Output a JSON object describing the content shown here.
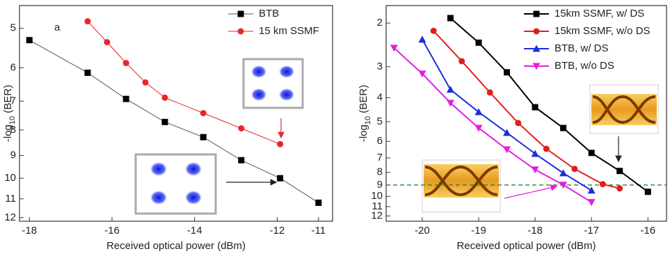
{
  "chart_data": [
    {
      "type": "line",
      "annotation": "a",
      "xlabel": "Received optical power (dBm)",
      "ylabel": {
        "main": "-log",
        "sub": "10",
        "tail": " (BER)"
      },
      "xlim": [
        -18.24,
        -10.66
      ],
      "xticks": [
        -18,
        -16,
        -14,
        -12,
        -11
      ],
      "ylim": [
        4.5,
        12.2
      ],
      "yticks": [
        5,
        6,
        7,
        8,
        9,
        10,
        11,
        12
      ],
      "y_log": true,
      "y_inverted": true,
      "legend": "upper right",
      "line_width": 1,
      "series": [
        {
          "name": "BTB",
          "color": "#000000",
          "line_color": "#555555",
          "marker": "square",
          "x": [
            -18,
            -16.59,
            -15.66,
            -14.72,
            -13.79,
            -12.87,
            -11.93,
            -11
          ],
          "values": [
            5.28,
            6.14,
            6.93,
            7.71,
            8.27,
            9.2,
            10.0,
            11.2
          ]
        },
        {
          "name": "15 km SSMF",
          "color": "#e8262a",
          "line_color": "#e8262a",
          "marker": "circle",
          "x": [
            -16.59,
            -16.12,
            -15.66,
            -15.19,
            -14.72,
            -13.79,
            -12.87,
            -11.93
          ],
          "values": [
            4.84,
            5.33,
            5.87,
            6.42,
            6.89,
            7.4,
            7.94,
            8.54
          ]
        }
      ]
    },
    {
      "type": "line",
      "xlabel": "Received optical power (dBm)",
      "ylabel": {
        "main": "-log",
        "sub": "10",
        "tail": " (BER)"
      },
      "xlim": [
        -20.64,
        -15.67
      ],
      "xticks": [
        -20,
        -19,
        -18,
        -17,
        -16
      ],
      "ylim": [
        1.7,
        12.6
      ],
      "yticks": [
        2,
        3,
        4,
        5,
        6,
        7,
        8,
        9,
        10,
        11,
        12
      ],
      "y_log": true,
      "y_inverted": true,
      "legend": "upper right",
      "line_width": 2,
      "hline": 9,
      "hline_color": "#2e7d32",
      "series": [
        {
          "name": "15km SSMF, w/  DS",
          "color": "#000000",
          "line_color": "#000000",
          "marker": "square",
          "x": [
            -19.5,
            -19,
            -18.5,
            -18,
            -17.5,
            -17,
            -16.5,
            -16
          ],
          "values": [
            1.91,
            2.4,
            3.16,
            4.37,
            5.3,
            6.68,
            7.9,
            9.59
          ]
        },
        {
          "name": "15km SSMF, w/o DS",
          "color": "#e0201c",
          "line_color": "#e0201c",
          "marker": "circle",
          "x": [
            -19.8,
            -19.3,
            -18.8,
            -18.3,
            -17.8,
            -17.3,
            -16.8,
            -16.5
          ],
          "values": [
            2.15,
            2.85,
            3.81,
            5.06,
            6.43,
            7.75,
            8.93,
            9.29
          ]
        },
        {
          "name": "BTB, w/ DS",
          "color": "#1c2fd8",
          "line_color": "#1c2fd8",
          "marker": "triangle-up",
          "x": [
            -20,
            -19.5,
            -19,
            -18.5,
            -18,
            -17.5,
            -17
          ],
          "values": [
            2.33,
            3.71,
            4.57,
            5.54,
            6.73,
            8.06,
            9.47
          ]
        },
        {
          "name": "BTB, w/o DS",
          "color": "#e020e0",
          "line_color": "#e020e0",
          "marker": "triangle-down",
          "x": [
            -20.5,
            -20,
            -19.5,
            -19,
            -18.5,
            -18,
            -17.5,
            -17
          ],
          "values": [
            2.52,
            3.2,
            4.2,
            5.3,
            6.47,
            7.8,
            8.99,
            10.56
          ]
        }
      ]
    }
  ]
}
